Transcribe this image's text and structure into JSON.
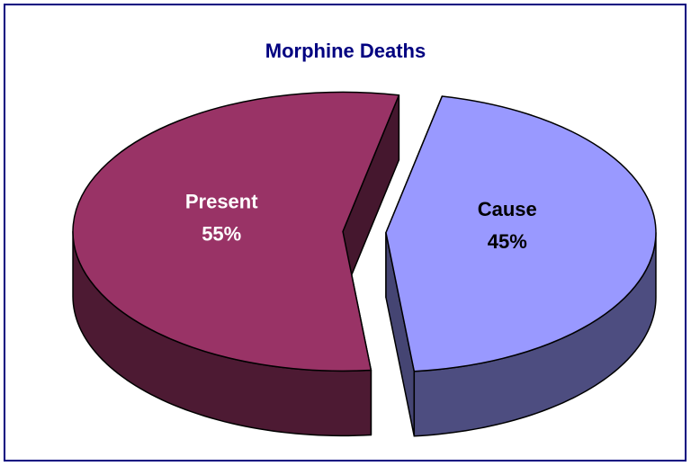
{
  "chart_data": {
    "type": "pie",
    "title": "Morphine Deaths",
    "categories": [
      "Present",
      "Cause"
    ],
    "values": [
      55,
      45
    ],
    "value_labels": [
      "55%",
      "45%"
    ],
    "colors": [
      "#993366",
      "#9999ff"
    ]
  }
}
